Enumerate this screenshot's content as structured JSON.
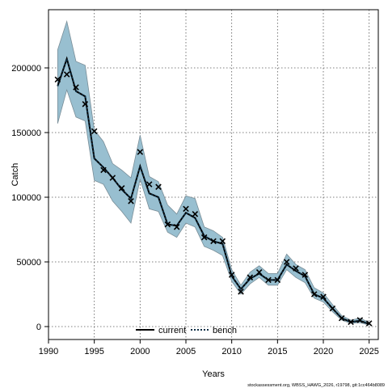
{
  "chart_data": {
    "type": "line",
    "xlabel": "Years",
    "ylabel": "Catch",
    "xlim": [
      1990,
      2026
    ],
    "ylim": [
      -10000,
      245000
    ],
    "x_ticks": [
      1990,
      1995,
      2000,
      2005,
      2010,
      2015,
      2020,
      2025
    ],
    "y_ticks": [
      0,
      50000,
      100000,
      150000,
      200000
    ],
    "grid": true,
    "legend_position": "bottom-center",
    "footer": "stockassessment.org, WBSS_HAWG_2026, r19798, git:1cc464b8089",
    "colors": {
      "band": "#98bfd0",
      "band_edge": "#7a8e98",
      "current": "#000000",
      "bench": "#0d2e45",
      "observed": "#000000"
    },
    "series": [
      {
        "name": "current",
        "style": "solid",
        "x": [
          1991,
          1992,
          1993,
          1994,
          1995,
          1996,
          1997,
          1998,
          1999,
          2000,
          2001,
          2002,
          2003,
          2004,
          2005,
          2006,
          2007,
          2008,
          2009,
          2010,
          2011,
          2012,
          2013,
          2014,
          2015,
          2016,
          2017,
          2018,
          2019,
          2020,
          2021,
          2022,
          2023,
          2024,
          2025
        ],
        "values": [
          186000,
          207000,
          182000,
          178000,
          130000,
          123000,
          115000,
          106000,
          99000,
          124000,
          103000,
          100000,
          79000,
          78000,
          88000,
          84000,
          70000,
          66000,
          64000,
          39000,
          29000,
          37000,
          41000,
          36000,
          36000,
          48000,
          43000,
          39000,
          25000,
          22000,
          14000,
          6500,
          3500,
          4500,
          2000
        ]
      },
      {
        "name": "bench",
        "style": "dotted",
        "x": [
          1991,
          1992,
          1993,
          1994,
          1995,
          1996,
          1997,
          1998,
          1999,
          2000,
          2001,
          2002,
          2003,
          2004,
          2005,
          2006,
          2007,
          2008,
          2009,
          2010,
          2011,
          2012,
          2013,
          2014,
          2015,
          2016,
          2017,
          2018,
          2019,
          2020,
          2021,
          2022,
          2023,
          2024,
          2025
        ],
        "values": [
          186000,
          207000,
          182000,
          178000,
          130000,
          123000,
          115000,
          106000,
          99000,
          124000,
          103000,
          100000,
          79000,
          78000,
          88000,
          84000,
          70000,
          66000,
          64000,
          39000,
          29000,
          37000,
          41000,
          36000,
          36000,
          48000,
          43000,
          39000,
          25000,
          22000,
          14000,
          6500,
          3500,
          4500,
          2000
        ]
      }
    ],
    "confidence_band": {
      "x": [
        1991,
        1992,
        1993,
        1994,
        1995,
        1996,
        1997,
        1998,
        1999,
        2000,
        2001,
        2002,
        2003,
        2004,
        2005,
        2006,
        2007,
        2008,
        2009,
        2010,
        2011,
        2012,
        2013,
        2014,
        2015,
        2016,
        2017,
        2018,
        2019,
        2020,
        2021,
        2022,
        2023,
        2024,
        2025
      ],
      "lower": [
        157000,
        183000,
        162000,
        159000,
        113000,
        110000,
        97000,
        89000,
        80000,
        114000,
        91000,
        89000,
        73000,
        69000,
        80000,
        77000,
        62000,
        59000,
        55000,
        35000,
        25000,
        33000,
        38000,
        32000,
        32000,
        44000,
        38000,
        34000,
        22000,
        19000,
        11500,
        5000,
        2500,
        3000,
        1200
      ],
      "upper": [
        214000,
        236000,
        205000,
        202000,
        152000,
        143000,
        126000,
        121000,
        115000,
        148000,
        116000,
        112000,
        94000,
        87000,
        101000,
        99000,
        77000,
        74000,
        69000,
        44000,
        32000,
        42000,
        47000,
        41000,
        41000,
        56000,
        48000,
        44000,
        30000,
        26000,
        17000,
        8500,
        5000,
        6500,
        3200
      ]
    },
    "observed": {
      "x": [
        1991,
        1992,
        1993,
        1994,
        1995,
        1996,
        1997,
        1998,
        1999,
        2000,
        2001,
        2002,
        2003,
        2004,
        2005,
        2006,
        2007,
        2008,
        2009,
        2010,
        2011,
        2012,
        2013,
        2014,
        2015,
        2016,
        2017,
        2018,
        2019,
        2020,
        2021,
        2022,
        2023,
        2024,
        2025
      ],
      "values": [
        191000,
        195000,
        185000,
        172000,
        151000,
        121000,
        115000,
        107000,
        97000,
        135000,
        110000,
        108000,
        79000,
        77000,
        91000,
        87000,
        69000,
        66000,
        66000,
        40000,
        27000,
        38000,
        42000,
        36000,
        36000,
        50000,
        45000,
        40000,
        25000,
        23000,
        14000,
        6500,
        3500,
        5000,
        2500
      ]
    }
  }
}
